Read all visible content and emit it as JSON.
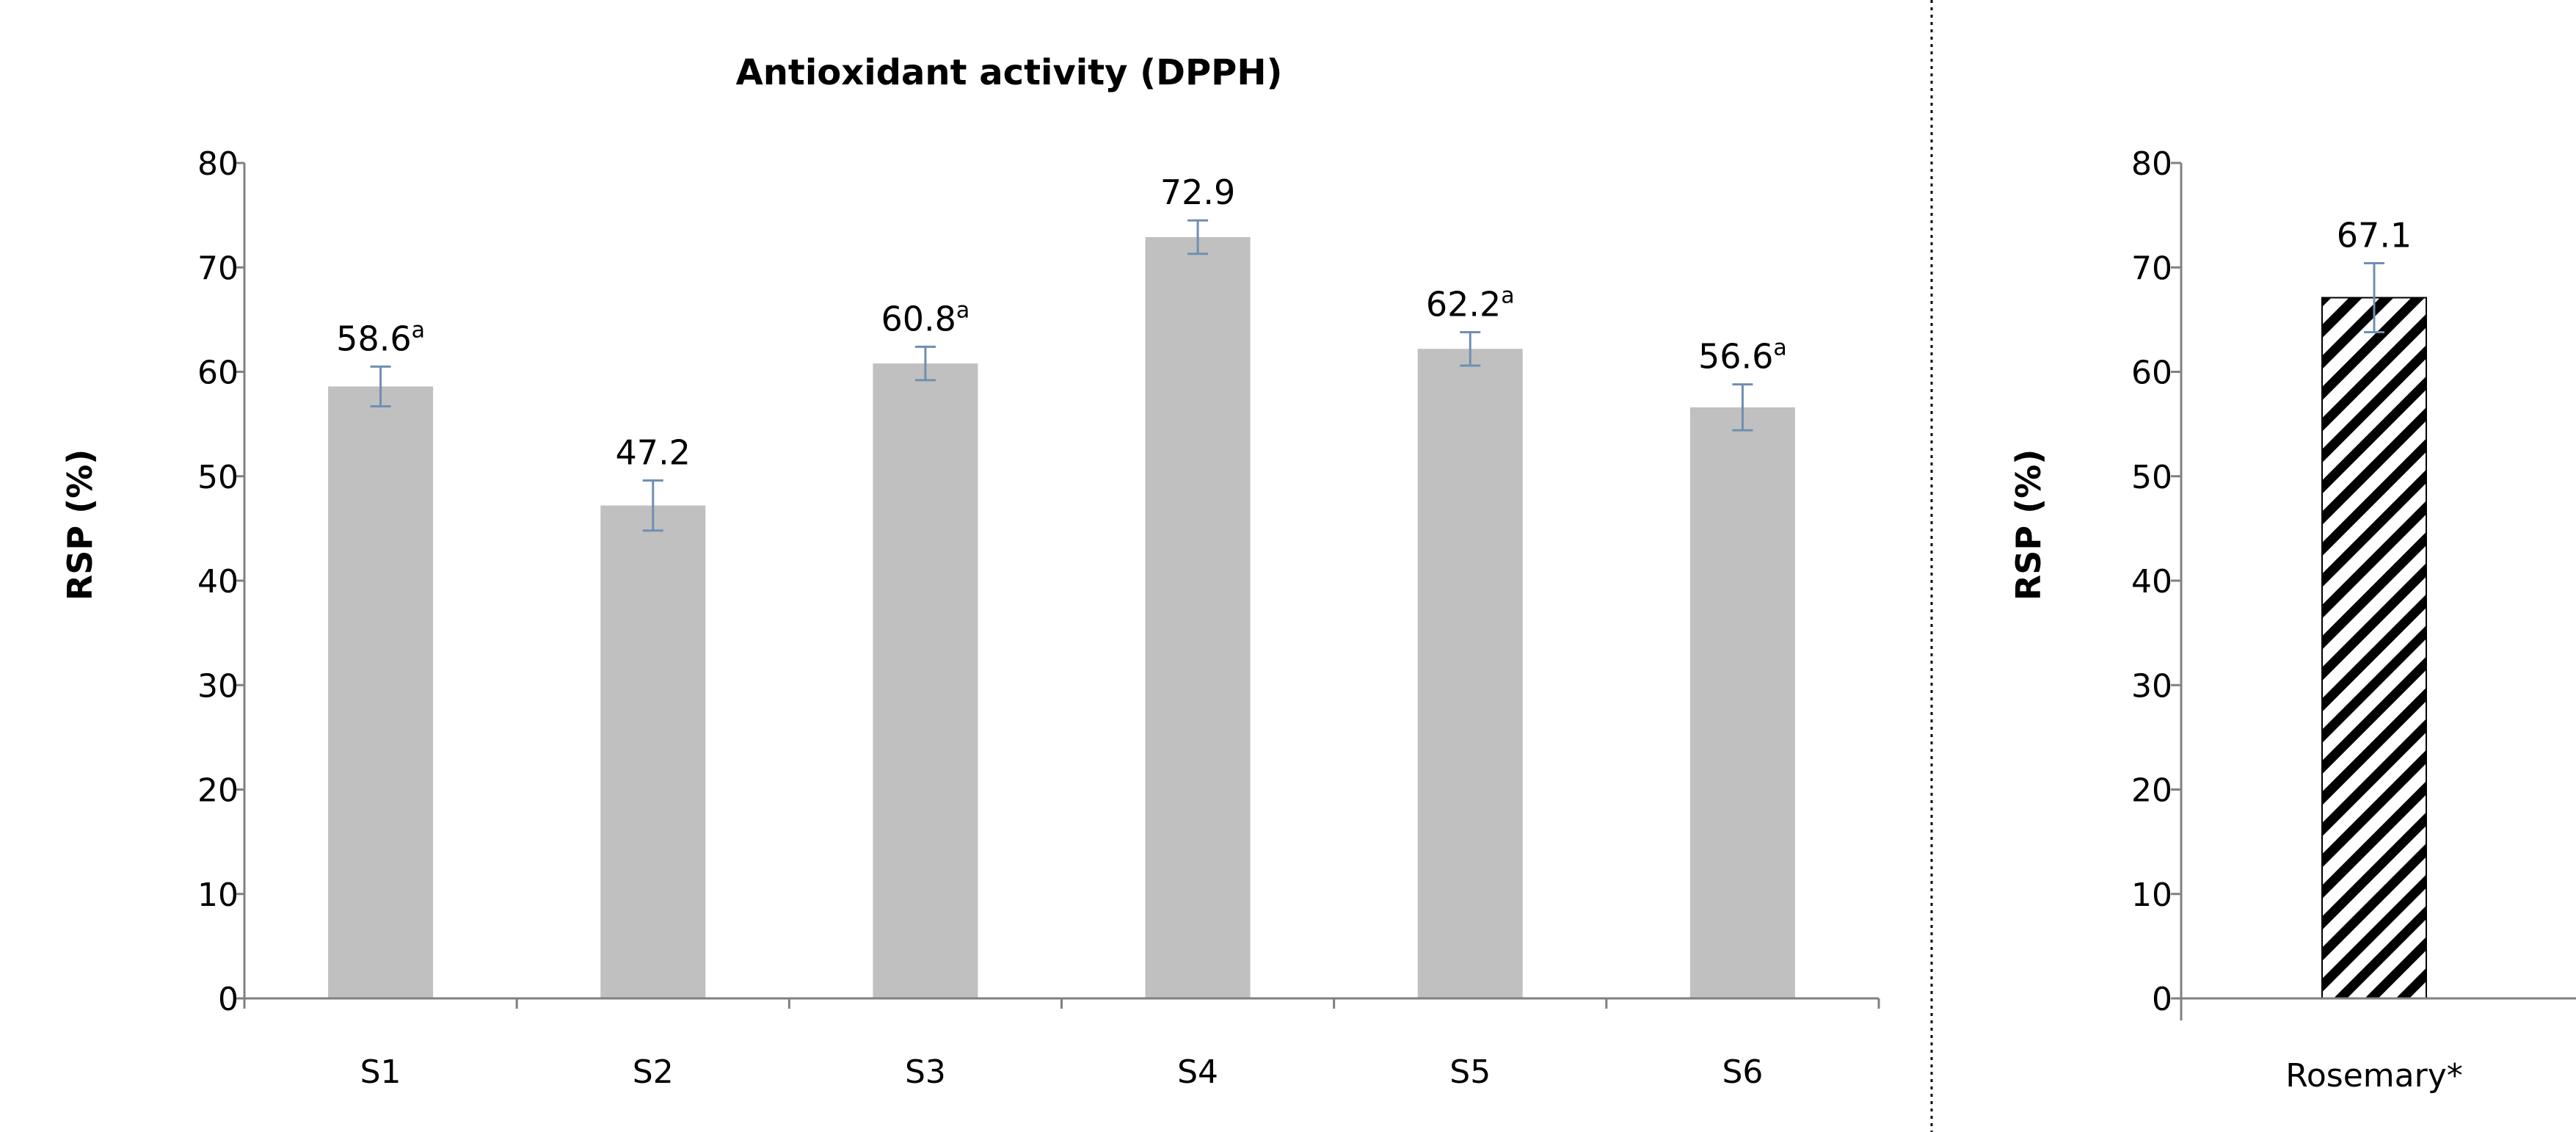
{
  "chart_data": [
    {
      "type": "bar",
      "title": "Antioxidant activity (DPPH)",
      "xlabel": "",
      "ylabel": "RSP (%)",
      "ylim": [
        0,
        80
      ],
      "yticks": [
        0,
        10,
        20,
        30,
        40,
        50,
        60,
        70,
        80
      ],
      "grid": false,
      "categories": [
        "S1",
        "S2",
        "S3",
        "S4",
        "S5",
        "S6"
      ],
      "series": [
        {
          "values": [
            58.6,
            47.2,
            60.8,
            72.9,
            62.2,
            56.6
          ],
          "errors": [
            1.9,
            2.4,
            1.6,
            1.6,
            1.6,
            2.2
          ],
          "labels": [
            "58.6",
            "47.2",
            "60.8",
            "72.9",
            "62.2",
            "56.6"
          ],
          "superscripts": [
            "a",
            "",
            "a",
            "",
            "a",
            "a"
          ]
        }
      ],
      "colors": {
        "bar": "#c0c0c0",
        "error": "#6f8fb3"
      }
    },
    {
      "type": "bar",
      "title": "",
      "xlabel": "",
      "ylabel": "RSP (%)",
      "ylim": [
        0,
        80
      ],
      "yticks": [
        0,
        10,
        20,
        30,
        40,
        50,
        60,
        70,
        80
      ],
      "grid": false,
      "categories": [
        "Rosemary*"
      ],
      "series": [
        {
          "values": [
            67.1
          ],
          "errors": [
            3.3
          ],
          "labels": [
            "67.1"
          ],
          "superscripts": [
            ""
          ]
        }
      ],
      "colors": {
        "bar_pattern": "diagonal-hatch",
        "hatch": "#000000",
        "error": "#6f8fb3"
      }
    }
  ]
}
